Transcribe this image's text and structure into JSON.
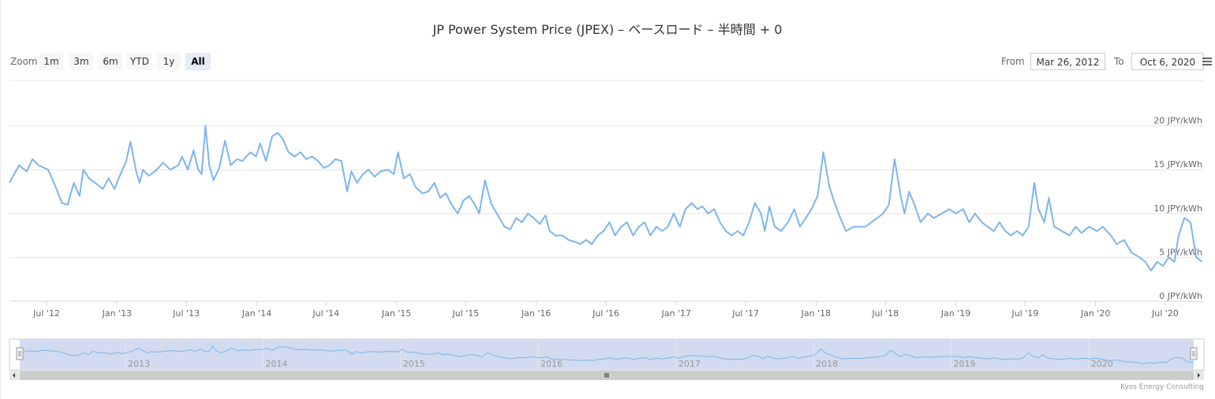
{
  "title": "JP Power System Price (JPEX) – ベースロード – 半時間 + 0",
  "zoom": {
    "label": "Zoom",
    "buttons": [
      "1m",
      "3m",
      "6m",
      "YTD",
      "1y",
      "All"
    ],
    "active": "All"
  },
  "range": {
    "from_label": "From",
    "from_value": "Mar 26, 2012",
    "to_label": "To",
    "to_value": "Oct 6, 2020"
  },
  "credit": "Kyos Energy Consulting",
  "colors": {
    "series": "#7cb5ec",
    "navigator_fill": "#d2dbef",
    "grid": "#e6e6e6"
  },
  "chart_data": {
    "type": "line",
    "title": "JP Power System Price (JPEX) – ベースロード – 半時間 + 0",
    "x_range": [
      "2012-03-26",
      "2020-10-06"
    ],
    "ylim": [
      0,
      25
    ],
    "y_ticks": [
      0,
      5,
      10,
      15,
      20
    ],
    "y_tick_labels": [
      "0 JPY/kWh",
      "5 JPY/kWh",
      "10 JPY/kWh",
      "15 JPY/kWh",
      "20 JPY/kWh"
    ],
    "x_ticks": [
      "2012-07-01",
      "2013-01-01",
      "2013-07-01",
      "2014-01-01",
      "2014-07-01",
      "2015-01-01",
      "2015-07-01",
      "2016-01-01",
      "2016-07-01",
      "2017-01-01",
      "2017-07-01",
      "2018-01-01",
      "2018-07-01",
      "2019-01-01",
      "2019-07-01",
      "2020-01-01",
      "2020-07-01"
    ],
    "x_tick_labels": [
      "Jul '12",
      "Jan '13",
      "Jul '13",
      "Jan '14",
      "Jul '14",
      "Jan '15",
      "Jul '15",
      "Jan '16",
      "Jul '16",
      "Jan '17",
      "Jul '17",
      "Jan '18",
      "Jul '18",
      "Jan '19",
      "Jul '19",
      "Jan '20",
      "Jul '20"
    ],
    "navigator_ticks": [
      "2013-01-01",
      "2014-01-01",
      "2015-01-01",
      "2016-01-01",
      "2017-01-01",
      "2018-01-01",
      "2019-01-01",
      "2020-01-01"
    ],
    "navigator_labels": [
      "2013",
      "2014",
      "2015",
      "2016",
      "2017",
      "2018",
      "2019",
      "2020"
    ],
    "grid": true,
    "legend": "none",
    "series": [
      {
        "points": [
          [
            "2012-03-26",
            13.5
          ],
          [
            "2012-04-20",
            15.5
          ],
          [
            "2012-05-10",
            14.8
          ],
          [
            "2012-05-25",
            16.2
          ],
          [
            "2012-06-10",
            15.5
          ],
          [
            "2012-07-05",
            15.0
          ],
          [
            "2012-07-25",
            13.0
          ],
          [
            "2012-08-10",
            11.2
          ],
          [
            "2012-08-25",
            11.0
          ],
          [
            "2012-09-10",
            13.5
          ],
          [
            "2012-09-25",
            12.0
          ],
          [
            "2012-10-05",
            15.0
          ],
          [
            "2012-10-20",
            14.0
          ],
          [
            "2012-11-05",
            13.5
          ],
          [
            "2012-11-25",
            12.8
          ],
          [
            "2012-12-10",
            14.0
          ],
          [
            "2012-12-25",
            12.8
          ],
          [
            "2013-01-10",
            14.5
          ],
          [
            "2013-01-25",
            16.0
          ],
          [
            "2013-02-05",
            18.2
          ],
          [
            "2013-02-20",
            14.8
          ],
          [
            "2013-03-01",
            13.5
          ],
          [
            "2013-03-10",
            15.0
          ],
          [
            "2013-03-25",
            14.3
          ],
          [
            "2013-04-15",
            15.0
          ],
          [
            "2013-05-01",
            15.8
          ],
          [
            "2013-05-20",
            15.0
          ],
          [
            "2013-06-10",
            15.5
          ],
          [
            "2013-06-20",
            16.5
          ],
          [
            "2013-07-05",
            15.0
          ],
          [
            "2013-07-20",
            17.2
          ],
          [
            "2013-08-01",
            15.0
          ],
          [
            "2013-08-10",
            14.5
          ],
          [
            "2013-08-20",
            20.0
          ],
          [
            "2013-08-30",
            15.5
          ],
          [
            "2013-09-10",
            13.8
          ],
          [
            "2013-09-25",
            15.2
          ],
          [
            "2013-10-10",
            18.3
          ],
          [
            "2013-10-25",
            15.5
          ],
          [
            "2013-11-10",
            16.2
          ],
          [
            "2013-11-25",
            16.0
          ],
          [
            "2013-12-15",
            17.0
          ],
          [
            "2013-12-30",
            16.5
          ],
          [
            "2014-01-10",
            18.0
          ],
          [
            "2014-01-25",
            16.0
          ],
          [
            "2014-02-10",
            18.8
          ],
          [
            "2014-02-25",
            19.2
          ],
          [
            "2014-03-10",
            18.5
          ],
          [
            "2014-03-25",
            17.0
          ],
          [
            "2014-04-10",
            16.5
          ],
          [
            "2014-04-25",
            17.0
          ],
          [
            "2014-05-10",
            16.2
          ],
          [
            "2014-05-25",
            16.5
          ],
          [
            "2014-06-10",
            16.0
          ],
          [
            "2014-06-25",
            15.2
          ],
          [
            "2014-07-10",
            15.5
          ],
          [
            "2014-07-25",
            16.2
          ],
          [
            "2014-08-10",
            16.0
          ],
          [
            "2014-08-25",
            12.5
          ],
          [
            "2014-09-05",
            14.8
          ],
          [
            "2014-09-20",
            13.5
          ],
          [
            "2014-10-05",
            14.5
          ],
          [
            "2014-10-20",
            15.0
          ],
          [
            "2014-11-05",
            14.2
          ],
          [
            "2014-11-20",
            14.8
          ],
          [
            "2014-12-10",
            15.0
          ],
          [
            "2014-12-25",
            14.5
          ],
          [
            "2015-01-05",
            17.0
          ],
          [
            "2015-01-20",
            14.0
          ],
          [
            "2015-02-05",
            14.5
          ],
          [
            "2015-02-20",
            13.0
          ],
          [
            "2015-03-10",
            12.3
          ],
          [
            "2015-03-25",
            12.5
          ],
          [
            "2015-04-10",
            13.5
          ],
          [
            "2015-04-25",
            11.8
          ],
          [
            "2015-05-10",
            12.3
          ],
          [
            "2015-05-25",
            11.0
          ],
          [
            "2015-06-10",
            10.0
          ],
          [
            "2015-06-25",
            11.5
          ],
          [
            "2015-07-10",
            12.0
          ],
          [
            "2015-07-25",
            11.0
          ],
          [
            "2015-08-05",
            10.0
          ],
          [
            "2015-08-20",
            13.8
          ],
          [
            "2015-09-05",
            11.2
          ],
          [
            "2015-09-20",
            10.0
          ],
          [
            "2015-10-10",
            8.5
          ],
          [
            "2015-10-25",
            8.2
          ],
          [
            "2015-11-10",
            9.5
          ],
          [
            "2015-11-25",
            9.0
          ],
          [
            "2015-12-10",
            10.0
          ],
          [
            "2015-12-25",
            9.5
          ],
          [
            "2016-01-10",
            8.8
          ],
          [
            "2016-01-25",
            9.8
          ],
          [
            "2016-02-05",
            8.0
          ],
          [
            "2016-02-20",
            7.5
          ],
          [
            "2016-03-10",
            7.5
          ],
          [
            "2016-03-25",
            7.0
          ],
          [
            "2016-04-10",
            6.8
          ],
          [
            "2016-04-25",
            6.5
          ],
          [
            "2016-05-10",
            7.0
          ],
          [
            "2016-05-25",
            6.5
          ],
          [
            "2016-06-10",
            7.5
          ],
          [
            "2016-06-25",
            8.0
          ],
          [
            "2016-07-10",
            9.0
          ],
          [
            "2016-07-25",
            7.5
          ],
          [
            "2016-08-10",
            8.5
          ],
          [
            "2016-08-25",
            9.0
          ],
          [
            "2016-09-10",
            7.5
          ],
          [
            "2016-09-25",
            8.5
          ],
          [
            "2016-10-10",
            9.0
          ],
          [
            "2016-10-25",
            7.5
          ],
          [
            "2016-11-10",
            8.5
          ],
          [
            "2016-11-25",
            8.0
          ],
          [
            "2016-12-10",
            8.5
          ],
          [
            "2016-12-25",
            10.0
          ],
          [
            "2017-01-10",
            8.5
          ],
          [
            "2017-01-25",
            10.5
          ],
          [
            "2017-02-10",
            11.2
          ],
          [
            "2017-02-25",
            10.5
          ],
          [
            "2017-03-10",
            10.8
          ],
          [
            "2017-03-25",
            10.0
          ],
          [
            "2017-04-10",
            10.5
          ],
          [
            "2017-04-25",
            9.0
          ],
          [
            "2017-05-10",
            8.0
          ],
          [
            "2017-05-25",
            7.5
          ],
          [
            "2017-06-10",
            8.0
          ],
          [
            "2017-06-25",
            7.5
          ],
          [
            "2017-07-10",
            9.0
          ],
          [
            "2017-07-25",
            11.2
          ],
          [
            "2017-08-10",
            10.0
          ],
          [
            "2017-08-20",
            8.0
          ],
          [
            "2017-09-01",
            10.8
          ],
          [
            "2017-09-15",
            8.5
          ],
          [
            "2017-10-01",
            8.0
          ],
          [
            "2017-10-20",
            9.0
          ],
          [
            "2017-11-05",
            10.5
          ],
          [
            "2017-11-20",
            8.5
          ],
          [
            "2017-12-05",
            9.5
          ],
          [
            "2017-12-20",
            10.5
          ],
          [
            "2018-01-05",
            12.0
          ],
          [
            "2018-01-20",
            17.0
          ],
          [
            "2018-02-05",
            13.0
          ],
          [
            "2018-02-20",
            11.0
          ],
          [
            "2018-03-05",
            9.5
          ],
          [
            "2018-03-20",
            8.0
          ],
          [
            "2018-04-10",
            8.5
          ],
          [
            "2018-04-25",
            8.5
          ],
          [
            "2018-05-10",
            8.5
          ],
          [
            "2018-05-25",
            9.0
          ],
          [
            "2018-06-10",
            9.5
          ],
          [
            "2018-06-25",
            10.0
          ],
          [
            "2018-07-10",
            11.0
          ],
          [
            "2018-07-25",
            16.2
          ],
          [
            "2018-08-10",
            12.0
          ],
          [
            "2018-08-20",
            10.0
          ],
          [
            "2018-09-01",
            12.5
          ],
          [
            "2018-09-15",
            11.0
          ],
          [
            "2018-10-01",
            9.0
          ],
          [
            "2018-10-20",
            10.0
          ],
          [
            "2018-11-05",
            9.5
          ],
          [
            "2018-11-25",
            10.0
          ],
          [
            "2018-12-15",
            10.5
          ],
          [
            "2019-01-01",
            10.0
          ],
          [
            "2019-01-20",
            10.5
          ],
          [
            "2019-02-05",
            9.0
          ],
          [
            "2019-02-20",
            10.0
          ],
          [
            "2019-03-10",
            9.0
          ],
          [
            "2019-03-25",
            8.5
          ],
          [
            "2019-04-10",
            8.0
          ],
          [
            "2019-04-25",
            9.0
          ],
          [
            "2019-05-10",
            8.0
          ],
          [
            "2019-05-25",
            7.5
          ],
          [
            "2019-06-10",
            8.0
          ],
          [
            "2019-06-25",
            7.5
          ],
          [
            "2019-07-10",
            8.5
          ],
          [
            "2019-07-25",
            13.5
          ],
          [
            "2019-08-05",
            10.5
          ],
          [
            "2019-08-20",
            9.0
          ],
          [
            "2019-09-01",
            11.8
          ],
          [
            "2019-09-15",
            8.5
          ],
          [
            "2019-10-05",
            8.0
          ],
          [
            "2019-10-25",
            7.5
          ],
          [
            "2019-11-10",
            8.5
          ],
          [
            "2019-11-25",
            7.8
          ],
          [
            "2019-12-15",
            8.5
          ],
          [
            "2020-01-05",
            8.0
          ],
          [
            "2020-01-20",
            8.5
          ],
          [
            "2020-02-10",
            7.5
          ],
          [
            "2020-02-25",
            6.5
          ],
          [
            "2020-03-15",
            7.0
          ],
          [
            "2020-04-05",
            5.5
          ],
          [
            "2020-04-25",
            5.0
          ],
          [
            "2020-05-10",
            4.5
          ],
          [
            "2020-05-25",
            3.5
          ],
          [
            "2020-06-10",
            4.5
          ],
          [
            "2020-06-25",
            4.0
          ],
          [
            "2020-07-10",
            5.0
          ],
          [
            "2020-07-25",
            4.5
          ],
          [
            "2020-08-05",
            7.5
          ],
          [
            "2020-08-20",
            9.5
          ],
          [
            "2020-09-05",
            9.0
          ],
          [
            "2020-09-20",
            5.0
          ],
          [
            "2020-10-06",
            4.5
          ]
        ]
      }
    ]
  }
}
